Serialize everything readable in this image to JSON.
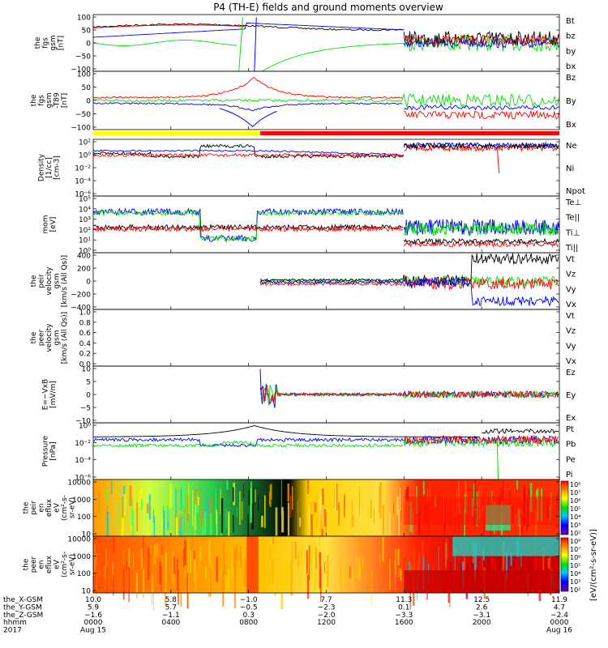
{
  "title": "P4 (TH-E) fields and ground moments overview",
  "colors": {
    "black": "#000000",
    "red": "#ff0000",
    "green": "#00e000",
    "blue": "#0000ff",
    "yellow": "#ffff00"
  },
  "chart_data": [
    {
      "type": "line",
      "ylabel": [
        "the",
        "fgs",
        "gsm",
        "[nT]"
      ],
      "yticks": [
        "100",
        "50",
        "0",
        "−50",
        "−100"
      ],
      "ylim": [
        -100,
        100
      ],
      "series": [
        {
          "name": "Bt",
          "color": "#000000"
        },
        {
          "name": "bz",
          "color": "#ff0000"
        },
        {
          "name": "by",
          "color": "#00e000"
        },
        {
          "name": "bx",
          "color": "#0000ff"
        }
      ]
    },
    {
      "type": "line",
      "ylabel": [
        "the",
        "fgs",
        "gsm",
        "-T89",
        "[nT]"
      ],
      "yticks": [
        "100",
        "50",
        "0",
        "−50",
        "−100"
      ],
      "ylim": [
        -125,
        100
      ],
      "series": [
        {
          "name": "Bz",
          "color": "#ff0000"
        },
        {
          "name": "By",
          "color": "#00e000"
        },
        {
          "name": "Bx",
          "color": "#0000ff"
        }
      ]
    },
    {
      "type": "line",
      "ylabel": [
        "Density",
        "[1/cc]",
        "[cm-3]"
      ],
      "yticks": [
        "10²",
        "10⁰",
        "10⁻²",
        "10⁻⁴",
        "10⁻⁶"
      ],
      "yscale": "log",
      "series": [
        {
          "name": "Ne",
          "color": "#ff0000"
        },
        {
          "name": "Ni",
          "color": "#000000"
        },
        {
          "name": "Npot",
          "color": "#0000ff"
        }
      ]
    },
    {
      "type": "line",
      "ylabel": [
        "mom",
        "[eV]"
      ],
      "yticks": [
        "10⁵",
        "10⁴",
        "10³",
        "10²",
        "10¹",
        "10⁰"
      ],
      "yscale": "log",
      "series": [
        {
          "name": "Te⊥",
          "color": "#ff0000"
        },
        {
          "name": "Te||",
          "color": "#000000"
        },
        {
          "name": "Ti⊥",
          "color": "#00e000"
        },
        {
          "name": "Ti||",
          "color": "#00e000"
        }
      ]
    },
    {
      "type": "line",
      "ylabel": [
        "the",
        "peir",
        "velocity",
        "gsm",
        "[km/s (All Qs)]"
      ],
      "yticks": [
        "400",
        "200",
        "0",
        "−200",
        "−400"
      ],
      "ylim": [
        -400,
        400
      ],
      "series": [
        {
          "name": "Vt",
          "color": "#000000"
        },
        {
          "name": "Vz",
          "color": "#ff0000"
        },
        {
          "name": "Vy",
          "color": "#00e000"
        },
        {
          "name": "Vx",
          "color": "#0000ff"
        }
      ]
    },
    {
      "type": "line",
      "ylabel": [
        "the",
        "peer",
        "velocity",
        "gsm",
        "[km/s (All Qs)]"
      ],
      "yticks": [
        "1.0",
        "0.8",
        "0.6",
        "0.4",
        "0.2",
        "0.0"
      ],
      "ylim": [
        0,
        1
      ],
      "series": [
        {
          "name": "Vt",
          "color": "#000000"
        },
        {
          "name": "Vz",
          "color": "#ff0000"
        },
        {
          "name": "Vy",
          "color": "#00e000"
        },
        {
          "name": "Vx",
          "color": "#0000ff"
        }
      ]
    },
    {
      "type": "line",
      "ylabel": [
        "E=−VxB",
        "[mV/m]"
      ],
      "yticks": [
        "10",
        "5",
        "0",
        "−5",
        "−10"
      ],
      "ylim": [
        -12,
        12
      ],
      "series": [
        {
          "name": "Ez",
          "color": "#ff0000"
        },
        {
          "name": "Ey",
          "color": "#00e000"
        },
        {
          "name": "Ex",
          "color": "#0000ff"
        }
      ]
    },
    {
      "type": "line",
      "ylabel": [
        "Pressure",
        "[nPa]"
      ],
      "yticks": [
        "10⁰",
        "10⁻²",
        "10⁻⁴",
        "10⁻⁶"
      ],
      "yscale": "log",
      "series": [
        {
          "name": "Pt",
          "color": "#000000"
        },
        {
          "name": "Pb",
          "color": "#ff0000"
        },
        {
          "name": "Pe",
          "color": "#00e000"
        },
        {
          "name": "Pi",
          "color": "#0000ff"
        }
      ]
    },
    {
      "type": "heatmap",
      "ylabel": [
        "the",
        "peir",
        "en",
        "eflux",
        "eV",
        "(cm²-s-",
        "sr-eV)"
      ],
      "yticks": [
        "10000",
        "1000",
        "100",
        "10"
      ],
      "yscale": "log",
      "colorbar": {
        "label": "[eV/(cm²-s-sr-eV)]",
        "ticks": [
          "10⁸",
          "10⁷",
          "10⁶",
          "10⁵",
          "10⁴",
          "10³",
          "10²"
        ]
      }
    },
    {
      "type": "heatmap",
      "ylabel": [
        "the",
        "peer",
        "en",
        "eflux",
        "eV",
        "(cm²-s-",
        "sr-eV)"
      ],
      "yticks": [
        "10000",
        "1000",
        "100",
        "10"
      ],
      "yscale": "log",
      "colorbar": {
        "label": "[eV/(cm²-s-sr-eV)]",
        "ticks": [
          "10⁸",
          "10⁷",
          "10⁶",
          "10⁵",
          "10⁴",
          "10³",
          "10²"
        ]
      }
    }
  ],
  "xaxis": {
    "rows": [
      {
        "label": "the_X-GSM",
        "values": [
          "10.0",
          "5.8",
          "−1.0",
          "7.7",
          "11.3",
          "12.5",
          "11.9"
        ]
      },
      {
        "label": "the_Y-GSM",
        "values": [
          "5.9",
          "5.7",
          "−0.5",
          "−2.3",
          "0.1",
          "2.6",
          "4.7"
        ]
      },
      {
        "label": "the_Z-GSM",
        "values": [
          "−1.6",
          "−1.1",
          "0.3",
          "−2.0",
          "−3.3",
          "−3.1",
          "−2.4"
        ]
      },
      {
        "label": "hhmm",
        "values": [
          "0000",
          "0400",
          "0800",
          "1200",
          "1600",
          "2000",
          "0000"
        ]
      },
      {
        "label": "2017",
        "values": [
          "Aug 15",
          "",
          "",
          "",
          "",
          "",
          "Aug 16"
        ]
      }
    ],
    "ticks_hours": [
      0,
      4,
      8,
      12,
      16,
      20,
      24
    ]
  }
}
